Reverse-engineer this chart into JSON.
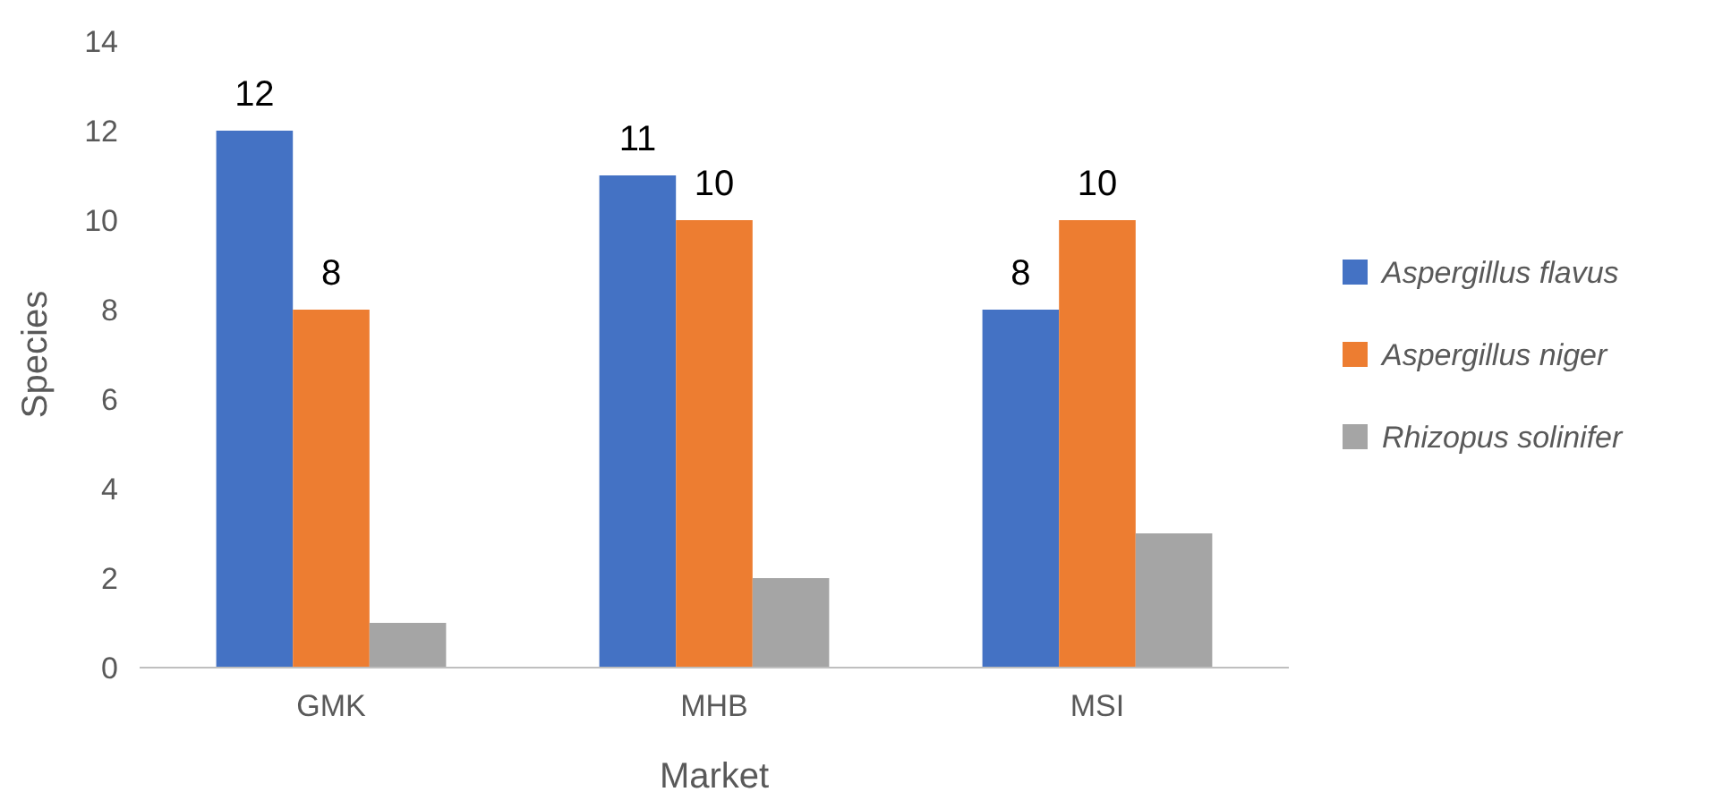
{
  "chart_data": {
    "type": "bar",
    "xlabel": "Market",
    "ylabel": "Species",
    "categories": [
      "GMK",
      "MHB",
      "MSI"
    ],
    "series": [
      {
        "name": "Aspergillus flavus",
        "color": "#4472c4",
        "values": [
          12,
          11,
          8
        ],
        "value_labels": [
          "12",
          "11",
          "8"
        ]
      },
      {
        "name": "Aspergillus niger",
        "color": "#ed7d31",
        "values": [
          8,
          10,
          10
        ],
        "value_labels": [
          "8",
          "10",
          "10"
        ]
      },
      {
        "name": "Rhizopus solinifer",
        "color": "#a5a5a5",
        "values": [
          1,
          2,
          3
        ],
        "value_labels": [
          null,
          null,
          null
        ]
      }
    ],
    "ylim": [
      0,
      14
    ],
    "yticks": [
      0,
      2,
      4,
      6,
      8,
      10,
      12,
      14
    ],
    "grid": false,
    "legend": "right"
  }
}
